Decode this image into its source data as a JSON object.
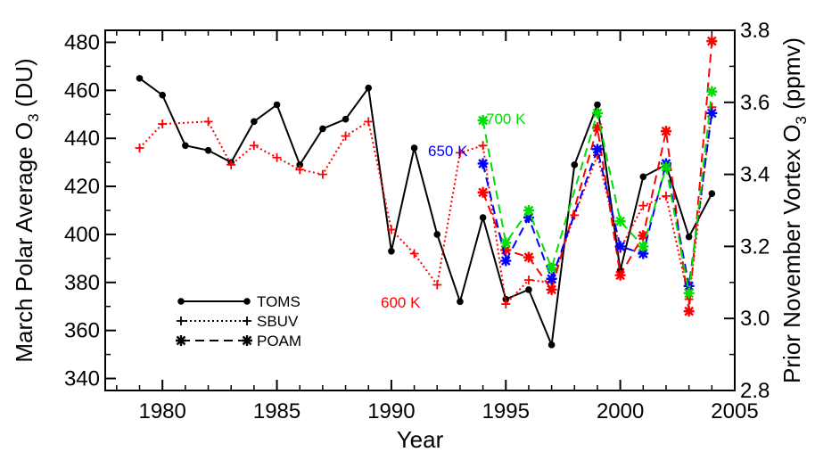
{
  "chart_data": {
    "type": "line",
    "xlabel": "Year",
    "ylabel_left": "March Polar Average O",
    "ylabel_left_sub": "3",
    "ylabel_left_unit": " (DU)",
    "ylabel_right": "Prior November Vortex O",
    "ylabel_right_sub": "3",
    "ylabel_right_unit": " (ppmv)",
    "xlim": [
      1977.5,
      2005
    ],
    "ylim_left": [
      335,
      485
    ],
    "ylim_right": [
      2.8,
      3.8
    ],
    "xticks": [
      "1980",
      "1985",
      "1990",
      "1995",
      "2000",
      "2005"
    ],
    "yticks_left": [
      "340",
      "360",
      "380",
      "400",
      "420",
      "440",
      "460",
      "480"
    ],
    "yticks_right": [
      "2.8",
      "3.0",
      "3.2",
      "3.4",
      "3.6",
      "3.8"
    ],
    "legend": [
      {
        "label": "TOMS",
        "style": "solid",
        "marker": "dot"
      },
      {
        "label": "SBUV",
        "style": "dotted",
        "marker": "plus"
      },
      {
        "label": "POAM",
        "style": "dashed",
        "marker": "star"
      }
    ],
    "annotations": [
      {
        "text": "700 K",
        "color": "#00dd00"
      },
      {
        "text": "650 K",
        "color": "#0000ff"
      },
      {
        "text": "600 K",
        "color": "#ff0000"
      }
    ],
    "series": [
      {
        "name": "TOMS",
        "axis": "left",
        "color": "#000000",
        "style": "solid",
        "marker": "dot",
        "x": [
          1979,
          1980,
          1981,
          1982,
          1983,
          1984,
          1985,
          1986,
          1987,
          1988,
          1989,
          1990,
          1991,
          1992,
          1993,
          1994,
          1995,
          1996,
          1997,
          1998,
          1999,
          2000,
          2001,
          2002,
          2003,
          2004
        ],
        "y": [
          465,
          458,
          437,
          435,
          430,
          447,
          454,
          429,
          444,
          448,
          461,
          393,
          436,
          400,
          372,
          407,
          373,
          377,
          354,
          429,
          454,
          385,
          424,
          429,
          399,
          417
        ]
      },
      {
        "name": "SBUV",
        "axis": "left",
        "color": "#ff0000",
        "style": "dotted",
        "marker": "plus",
        "x": [
          1979,
          1980,
          1982,
          1983,
          1984,
          1985,
          1986,
          1987,
          1988,
          1989,
          1990,
          1991,
          1992,
          1993,
          1994,
          1995,
          1996,
          1997,
          1998,
          1999,
          2000,
          2001,
          2002,
          2003,
          2004
        ],
        "y": [
          436,
          446,
          447,
          429,
          437,
          432,
          427,
          425,
          441,
          447,
          402,
          392,
          379,
          434,
          437,
          371,
          381,
          380,
          408,
          433,
          394,
          412,
          416,
          373,
          453
        ]
      },
      {
        "name": "POAM 600 K",
        "axis": "right",
        "color": "#ff0000",
        "style": "dashed",
        "marker": "star",
        "x": [
          1994,
          1995,
          1996,
          1997,
          1999,
          2000,
          2001,
          2002,
          2003,
          2004
        ],
        "y": [
          3.35,
          3.19,
          3.17,
          3.08,
          3.53,
          3.12,
          3.23,
          3.52,
          3.02,
          3.77
        ]
      },
      {
        "name": "POAM 650 K",
        "axis": "right",
        "color": "#0000ff",
        "style": "dashed",
        "marker": "star",
        "x": [
          1994,
          1995,
          1996,
          1997,
          1999,
          2000,
          2001,
          2002,
          2003,
          2004
        ],
        "y": [
          3.43,
          3.16,
          3.28,
          3.11,
          3.47,
          3.2,
          3.18,
          3.43,
          3.09,
          3.57
        ]
      },
      {
        "name": "POAM 700 K",
        "axis": "right",
        "color": "#00dd00",
        "style": "dashed",
        "marker": "star",
        "x": [
          1994,
          1995,
          1996,
          1997,
          1999,
          2000,
          2001,
          2002,
          2003,
          2004
        ],
        "y": [
          3.55,
          3.21,
          3.3,
          3.14,
          3.57,
          3.27,
          3.2,
          3.42,
          3.07,
          3.63
        ]
      }
    ]
  }
}
